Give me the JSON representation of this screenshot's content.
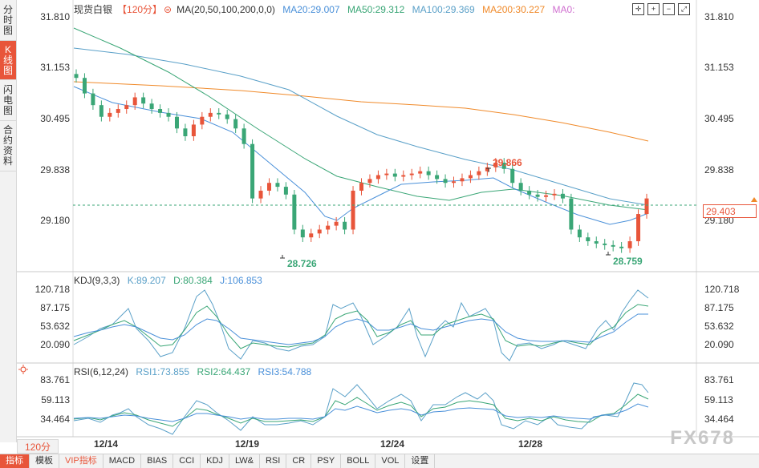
{
  "left_tabs": [
    {
      "label": [
        "分",
        "时",
        "图"
      ],
      "active": false
    },
    {
      "label": [
        "K",
        "线",
        "图"
      ],
      "active": true
    },
    {
      "label": [
        "闪",
        "电",
        "图"
      ],
      "active": false
    },
    {
      "label": [
        "合",
        "约",
        "资",
        "料"
      ],
      "active": false
    }
  ],
  "legend": {
    "name": "现货白银",
    "period": "【120分】",
    "ma_params": "MA(20,50,100,200,0,0)",
    "ma20": "MA20:29.007",
    "ma50": "MA50:29.312",
    "ma100": "MA100:29.369",
    "ma200": "MA200:30.227",
    "ma0": "MA0:"
  },
  "kdj_legend": {
    "name": "KDJ(9,3,3)",
    "k": "K:89.207",
    "d": "D:80.384",
    "j": "J:106.853"
  },
  "rsi_legend": {
    "name": "RSI(6,12,24)",
    "rsi1": "RSI1:73.855",
    "rsi2": "RSI2:64.437",
    "rsi3": "RSI3:54.788"
  },
  "price_axis": [
    "31.810",
    "31.153",
    "30.495",
    "29.838",
    "29.180"
  ],
  "kdj_axis": [
    "120.718",
    "87.175",
    "53.632",
    "20.090"
  ],
  "rsi_axis": [
    "83.761",
    "59.113",
    "34.464"
  ],
  "date_labels": [
    "12/14",
    "12/19",
    "12/24",
    "12/28"
  ],
  "annotations": {
    "high": "29.866",
    "low1": "28.726",
    "low2": "28.759"
  },
  "last_price": "29.403",
  "period_button": "120分",
  "bottom_tabs": [
    "指标",
    "模板",
    "VIP指标",
    "MACD",
    "BIAS",
    "CCI",
    "KDJ",
    "LW&",
    "RSI",
    "CR",
    "PSY",
    "BOLL",
    "VOL",
    "设置"
  ],
  "watermark": "FX678",
  "colors": {
    "up": "#e8553a",
    "down": "#3aa676",
    "ma20": "#4a90d9",
    "ma50": "#3aa676",
    "ma100": "#5aa0c8",
    "ma200": "#f08a2a",
    "ma0": "#d070d0"
  },
  "chart_data": {
    "type": "candlestick",
    "ylim": [
      28.5,
      31.9
    ],
    "candles_close_approx": [
      30.95,
      30.75,
      30.6,
      30.45,
      30.5,
      30.55,
      30.6,
      30.7,
      30.62,
      30.55,
      30.5,
      30.45,
      30.3,
      30.2,
      30.35,
      30.45,
      30.5,
      30.48,
      30.42,
      30.3,
      30.1,
      29.4,
      29.5,
      29.6,
      29.55,
      29.45,
      29.0,
      28.9,
      28.95,
      29.0,
      29.05,
      29.1,
      29.0,
      29.5,
      29.6,
      29.65,
      29.7,
      29.72,
      29.68,
      29.7,
      29.72,
      29.75,
      29.7,
      29.65,
      29.6,
      29.62,
      29.66,
      29.7,
      29.75,
      29.8,
      29.86,
      29.78,
      29.6,
      29.5,
      29.45,
      29.42,
      29.44,
      29.46,
      29.4,
      29.0,
      28.9,
      28.85,
      28.82,
      28.8,
      28.78,
      28.76,
      28.85,
      29.2,
      29.4
    ]
  }
}
